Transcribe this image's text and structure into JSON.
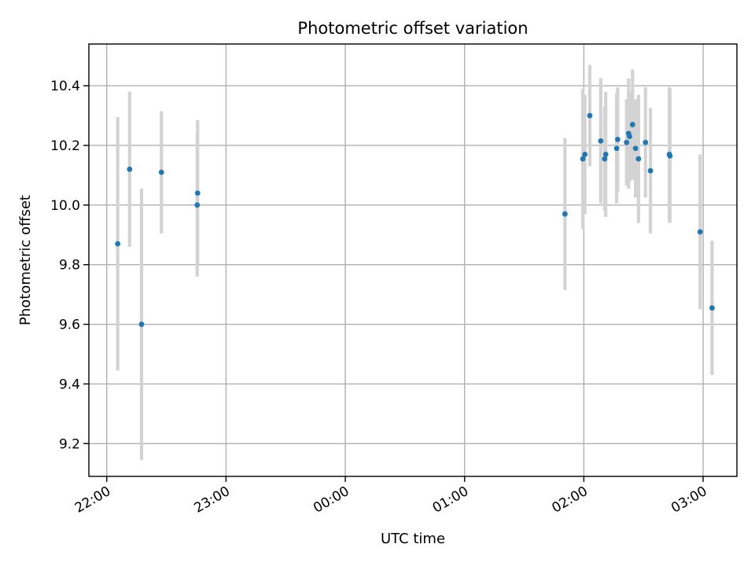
{
  "chart_data": {
    "type": "scatter",
    "title": "Photometric offset variation",
    "xlabel": "UTC time",
    "ylabel": "Photometric offset",
    "x_unit": "UTC time",
    "xlim": [
      "21:51",
      "03:17"
    ],
    "ylim": [
      9.09,
      10.54
    ],
    "grid": true,
    "x_ticks": [
      "22:00",
      "23:00",
      "00:00",
      "01:00",
      "02:00",
      "03:00"
    ],
    "y_ticks": [
      "9.2",
      "9.4",
      "9.6",
      "9.8",
      "10.0",
      "10.2",
      "10.4"
    ],
    "colors": {
      "marker": "#1f77b4",
      "errorbar": "#d3d3d3",
      "grid": "#b0b0b0"
    },
    "points": [
      {
        "x": "22:05.5",
        "y": 9.87,
        "yerr": 0.425
      },
      {
        "x": "22:11.5",
        "y": 10.12,
        "yerr": 0.26
      },
      {
        "x": "22:17.5",
        "y": 9.6,
        "yerr": 0.455
      },
      {
        "x": "22:27.5",
        "y": 10.11,
        "yerr": 0.205
      },
      {
        "x": "22:45.5",
        "y": 10.0,
        "yerr": 0.24
      },
      {
        "x": "22:45.7",
        "y": 10.04,
        "yerr": 0.245
      },
      {
        "x": "01:50.5",
        "y": 9.97,
        "yerr": 0.255
      },
      {
        "x": "01:59.5",
        "y": 10.155,
        "yerr": 0.235
      },
      {
        "x": "02:00.5",
        "y": 10.17,
        "yerr": 0.2
      },
      {
        "x": "02:03.0",
        "y": 10.3,
        "yerr": 0.17
      },
      {
        "x": "02:08.5",
        "y": 10.215,
        "yerr": 0.21
      },
      {
        "x": "02:10.5",
        "y": 10.155,
        "yerr": 0.175
      },
      {
        "x": "02:11.0",
        "y": 10.17,
        "yerr": 0.21
      },
      {
        "x": "02:16.5",
        "y": 10.19,
        "yerr": 0.185
      },
      {
        "x": "02:17.0",
        "y": 10.22,
        "yerr": 0.175
      },
      {
        "x": "02:21.5",
        "y": 10.21,
        "yerr": 0.145
      },
      {
        "x": "02:22.5",
        "y": 10.24,
        "yerr": 0.185
      },
      {
        "x": "02:23.0",
        "y": 10.23,
        "yerr": 0.15
      },
      {
        "x": "02:24.5",
        "y": 10.27,
        "yerr": 0.185
      },
      {
        "x": "02:26.0",
        "y": 10.19,
        "yerr": 0.165
      },
      {
        "x": "02:27.5",
        "y": 10.155,
        "yerr": 0.215
      },
      {
        "x": "02:31.0",
        "y": 10.21,
        "yerr": 0.185
      },
      {
        "x": "02:33.5",
        "y": 10.115,
        "yerr": 0.21
      },
      {
        "x": "02:43.0",
        "y": 10.17,
        "yerr": 0.225
      },
      {
        "x": "02:43.3",
        "y": 10.165,
        "yerr": 0.225
      },
      {
        "x": "02:58.5",
        "y": 9.91,
        "yerr": 0.26
      },
      {
        "x": "03:04.5",
        "y": 9.655,
        "yerr": 0.225
      }
    ]
  }
}
